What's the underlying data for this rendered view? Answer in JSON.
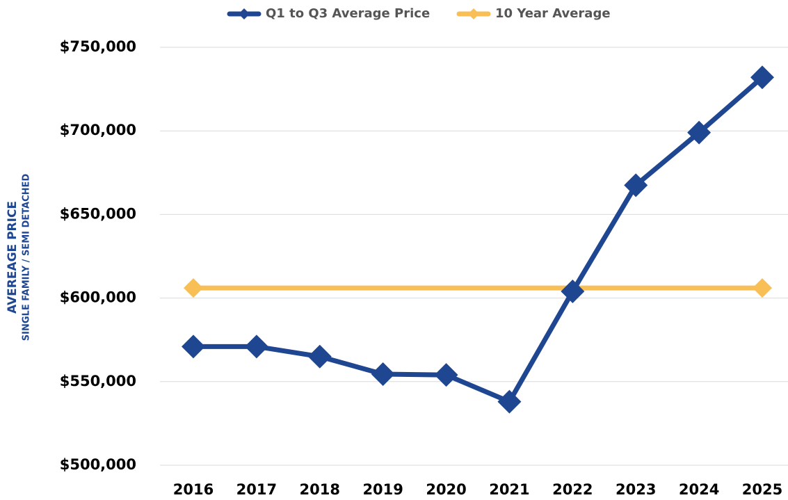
{
  "chart_data": {
    "type": "line",
    "y_axis_label": [
      "AVEREAGE  PRICE",
      "SINGLE FAMILY / SEMI DETACHED"
    ],
    "categories": [
      "2016",
      "2017",
      "2018",
      "2019",
      "2020",
      "2021",
      "2022",
      "2023",
      "2024",
      "2025"
    ],
    "series": [
      {
        "name": "Q1 to Q3 Average Price",
        "color": "#1f4690",
        "markers": "all",
        "values": [
          571000,
          571000,
          565000,
          554500,
          554000,
          538000,
          604000,
          667500,
          699000,
          732000
        ]
      },
      {
        "name": "10 Year Average",
        "color": "#f7bf55",
        "markers": "ends",
        "values": [
          606000,
          606000,
          606000,
          606000,
          606000,
          606000,
          606000,
          606000,
          606000,
          606000
        ]
      }
    ],
    "ylim": [
      500000,
      750000
    ],
    "yticks": [
      {
        "value": 500000,
        "label": "$500,000"
      },
      {
        "value": 550000,
        "label": "$550,000"
      },
      {
        "value": 600000,
        "label": "$600,000"
      },
      {
        "value": 650000,
        "label": "$650,000"
      },
      {
        "value": 700000,
        "label": "$700,000"
      },
      {
        "value": 750000,
        "label": "$750,000"
      }
    ],
    "grid": true,
    "legend": "top"
  }
}
